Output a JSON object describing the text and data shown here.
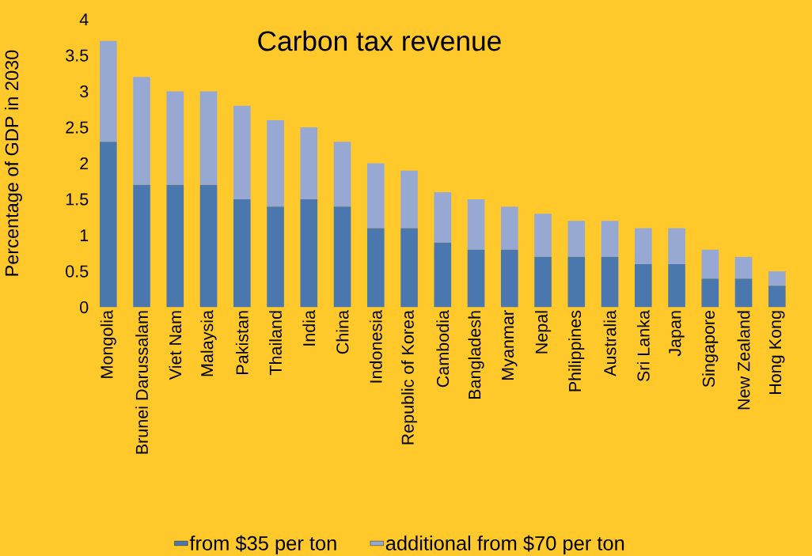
{
  "chart_data": {
    "type": "bar",
    "stacked": true,
    "title": "Carbon tax revenue",
    "ylabel": "Percentage of GDP in 2030",
    "categories": [
      "Mongolia",
      "Brunei Darussalam",
      "Viet Nam",
      "Malaysia",
      "Pakistan",
      "Thailand",
      "India",
      "China",
      "Indonesia",
      "Republic of Korea",
      "Cambodia",
      "Bangladesh",
      "Myanmar",
      "Nepal",
      "Philippines",
      "Australia",
      "Sri Lanka",
      "Japan",
      "Singapore",
      "New Zealand",
      "Hong Kong"
    ],
    "series": [
      {
        "name": "from $35 per ton",
        "color": "#4a78ae",
        "values": [
          2.3,
          1.7,
          1.7,
          1.7,
          1.5,
          1.4,
          1.5,
          1.4,
          1.1,
          1.1,
          0.9,
          0.8,
          0.8,
          0.7,
          0.7,
          0.7,
          0.6,
          0.6,
          0.4,
          0.4,
          0.3
        ]
      },
      {
        "name": "additional from $70 per ton",
        "color": "#97a9d3",
        "values": [
          1.4,
          1.5,
          1.3,
          1.3,
          1.3,
          1.2,
          1.0,
          0.9,
          0.9,
          0.8,
          0.7,
          0.7,
          0.6,
          0.6,
          0.5,
          0.5,
          0.5,
          0.5,
          0.4,
          0.3,
          0.2
        ]
      }
    ],
    "ylim": [
      0,
      4
    ],
    "yticks": [
      0,
      0.5,
      1,
      1.5,
      2,
      2.5,
      3,
      3.5,
      4
    ],
    "legend": "bottom"
  }
}
